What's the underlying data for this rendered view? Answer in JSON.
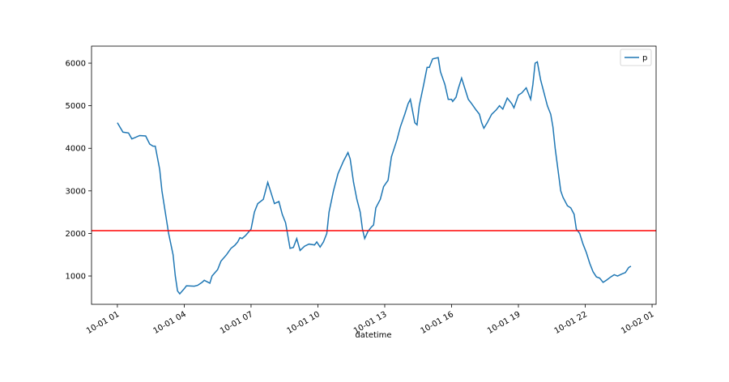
{
  "chart_data": {
    "type": "line",
    "xlabel": "datetime",
    "x": [
      1.0,
      1.25,
      1.5,
      1.65,
      2.0,
      2.27,
      2.45,
      2.6,
      2.7,
      2.9,
      3.0,
      3.15,
      3.3,
      3.5,
      3.6,
      3.7,
      3.8,
      4.0,
      4.1,
      4.45,
      4.6,
      4.8,
      4.9,
      5.15,
      5.25,
      5.5,
      5.65,
      5.9,
      6.1,
      6.27,
      6.4,
      6.5,
      6.6,
      6.75,
      7.0,
      7.15,
      7.3,
      7.55,
      7.75,
      7.9,
      8.05,
      8.25,
      8.4,
      8.55,
      8.75,
      8.9,
      9.05,
      9.2,
      9.4,
      9.6,
      9.85,
      9.95,
      10.1,
      10.25,
      10.4,
      10.5,
      10.7,
      10.9,
      11.15,
      11.35,
      11.45,
      11.6,
      11.75,
      11.9,
      12.0,
      12.1,
      12.25,
      12.4,
      12.5,
      12.6,
      12.8,
      12.95,
      13.15,
      13.3,
      13.55,
      13.7,
      13.9,
      14.05,
      14.15,
      14.35,
      14.45,
      14.55,
      14.75,
      14.9,
      15.0,
      15.15,
      15.4,
      15.5,
      15.7,
      15.85,
      16.0,
      16.05,
      16.2,
      16.3,
      16.45,
      16.6,
      16.75,
      16.9,
      17.1,
      17.25,
      17.35,
      17.45,
      17.6,
      17.8,
      18.0,
      18.15,
      18.3,
      18.5,
      18.7,
      18.8,
      19.0,
      19.15,
      19.35,
      19.55,
      19.65,
      19.75,
      19.85,
      20.0,
      20.15,
      20.3,
      20.45,
      20.55,
      20.65,
      20.8,
      20.9,
      21.0,
      21.2,
      21.35,
      21.5,
      21.6,
      21.75,
      21.9,
      22.05,
      22.2,
      22.35,
      22.5,
      22.65,
      22.8,
      22.95,
      23.15,
      23.3,
      23.45,
      23.65,
      23.8,
      23.95,
      24.05
    ],
    "series": [
      {
        "name": "p",
        "color": "#1f77b4",
        "values": [
          4600,
          4380,
          4360,
          4220,
          4300,
          4290,
          4100,
          4050,
          4050,
          3500,
          3000,
          2500,
          2000,
          1500,
          1000,
          650,
          580,
          700,
          770,
          760,
          780,
          850,
          900,
          830,
          1000,
          1150,
          1350,
          1500,
          1650,
          1720,
          1800,
          1900,
          1880,
          1950,
          2100,
          2500,
          2700,
          2800,
          3200,
          2950,
          2700,
          2750,
          2450,
          2250,
          1650,
          1670,
          1880,
          1600,
          1700,
          1750,
          1730,
          1800,
          1680,
          1800,
          2000,
          2500,
          3000,
          3400,
          3700,
          3900,
          3750,
          3200,
          2800,
          2500,
          2100,
          1880,
          2050,
          2150,
          2200,
          2600,
          2800,
          3100,
          3250,
          3800,
          4200,
          4500,
          4800,
          5050,
          5150,
          4600,
          4550,
          5000,
          5500,
          5900,
          5900,
          6100,
          6130,
          5800,
          5500,
          5150,
          5150,
          5100,
          5200,
          5400,
          5650,
          5400,
          5150,
          5050,
          4900,
          4800,
          4600,
          4470,
          4600,
          4800,
          4900,
          5000,
          4920,
          5180,
          5050,
          4950,
          5250,
          5300,
          5420,
          5150,
          5500,
          6000,
          6030,
          5600,
          5300,
          5000,
          4800,
          4500,
          4000,
          3400,
          3000,
          2850,
          2650,
          2600,
          2450,
          2100,
          2000,
          1750,
          1550,
          1300,
          1100,
          980,
          950,
          850,
          900,
          980,
          1030,
          1000,
          1050,
          1080,
          1200,
          1230
        ]
      }
    ],
    "hline": {
      "value": 2065,
      "color": "#ff0000"
    },
    "xlim": [
      -0.16,
      25.18
    ],
    "xticks": [
      {
        "value": 1,
        "label": "10-01 01"
      },
      {
        "value": 4,
        "label": "10-01 04"
      },
      {
        "value": 7,
        "label": "10-01 07"
      },
      {
        "value": 10,
        "label": "10-01 10"
      },
      {
        "value": 13,
        "label": "10-01 13"
      },
      {
        "value": 16,
        "label": "10-01 16"
      },
      {
        "value": 19,
        "label": "10-01 19"
      },
      {
        "value": 22,
        "label": "10-01 22"
      },
      {
        "value": 25,
        "label": "10-02 01"
      }
    ],
    "ylim": [
      335,
      6400
    ],
    "yticks": [
      1000,
      2000,
      3000,
      4000,
      5000,
      6000
    ],
    "legend": "upper right"
  }
}
